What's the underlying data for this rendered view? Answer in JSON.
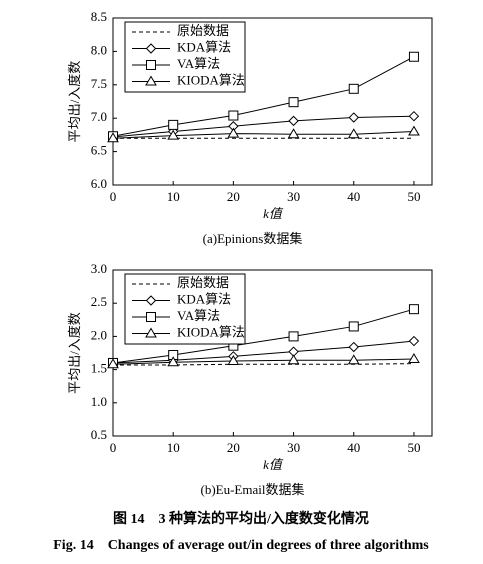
{
  "chart_data": [
    {
      "type": "line",
      "subtitle": "(a)Epinions数据集",
      "xlabel": "k值",
      "ylabel": "平均出/入度数",
      "x": [
        0,
        10,
        20,
        30,
        40,
        50
      ],
      "xlim": [
        0,
        53
      ],
      "xticks": [
        0,
        10,
        20,
        30,
        40,
        50
      ],
      "ylim": [
        6.0,
        8.5
      ],
      "yticks": [
        {
          "value": 6.0,
          "label": "6.0"
        },
        {
          "value": 6.5,
          "label": "6.5"
        },
        {
          "value": 7.0,
          "label": "7.0"
        },
        {
          "value": 7.5,
          "label": "7.5"
        },
        {
          "value": 8.0,
          "label": "8.0"
        },
        {
          "value": 8.5,
          "label": "8.5"
        }
      ],
      "legend": "upper left",
      "series": [
        {
          "name": "原始数据",
          "color": "#000000",
          "dash": "dashed",
          "marker": "none",
          "values": [
            6.7,
            6.7,
            6.7,
            6.7,
            6.7,
            6.7
          ]
        },
        {
          "name": "KDA算法",
          "color": "#000000",
          "dash": "solid",
          "marker": "diamond",
          "values": [
            6.72,
            6.8,
            6.88,
            6.96,
            7.01,
            7.03
          ]
        },
        {
          "name": "VA算法",
          "color": "#000000",
          "dash": "solid",
          "marker": "square",
          "values": [
            6.73,
            6.9,
            7.04,
            7.24,
            7.44,
            7.92
          ]
        },
        {
          "name": "KIODA算法",
          "color": "#000000",
          "dash": "solid",
          "marker": "triangle",
          "values": [
            6.7,
            6.74,
            6.77,
            6.76,
            6.76,
            6.8
          ]
        }
      ]
    },
    {
      "type": "line",
      "subtitle": "(b)Eu-Email数据集",
      "xlabel": "k值",
      "ylabel": "平均出/入度数",
      "x": [
        0,
        10,
        20,
        30,
        40,
        50
      ],
      "xlim": [
        0,
        53
      ],
      "xticks": [
        0,
        10,
        20,
        30,
        40,
        50
      ],
      "ylim": [
        0.5,
        3.0
      ],
      "yticks": [
        {
          "value": 0.5,
          "label": "0.5"
        },
        {
          "value": 1.0,
          "label": "1.0"
        },
        {
          "value": 1.5,
          "label": "1.5"
        },
        {
          "value": 2.0,
          "label": "2.0"
        },
        {
          "value": 2.5,
          "label": "2.5"
        },
        {
          "value": 3.0,
          "label": "3.0"
        }
      ],
      "legend": "upper left",
      "series": [
        {
          "name": "原始数据",
          "color": "#000000",
          "dash": "dashed",
          "marker": "none",
          "values": [
            1.57,
            1.57,
            1.58,
            1.58,
            1.58,
            1.59
          ]
        },
        {
          "name": "KDA算法",
          "color": "#000000",
          "dash": "solid",
          "marker": "diamond",
          "values": [
            1.6,
            1.64,
            1.7,
            1.77,
            1.84,
            1.93
          ]
        },
        {
          "name": "VA算法",
          "color": "#000000",
          "dash": "solid",
          "marker": "square",
          "values": [
            1.6,
            1.72,
            1.86,
            2.0,
            2.15,
            2.41
          ]
        },
        {
          "name": "KIODA算法",
          "color": "#000000",
          "dash": "solid",
          "marker": "triangle",
          "values": [
            1.58,
            1.61,
            1.63,
            1.64,
            1.64,
            1.66
          ]
        }
      ]
    }
  ],
  "caption_cn": "图 14　3 种算法的平均出/入度数变化情况",
  "caption_en": "Fig. 14　Changes of average out/in degrees of three algorithms"
}
